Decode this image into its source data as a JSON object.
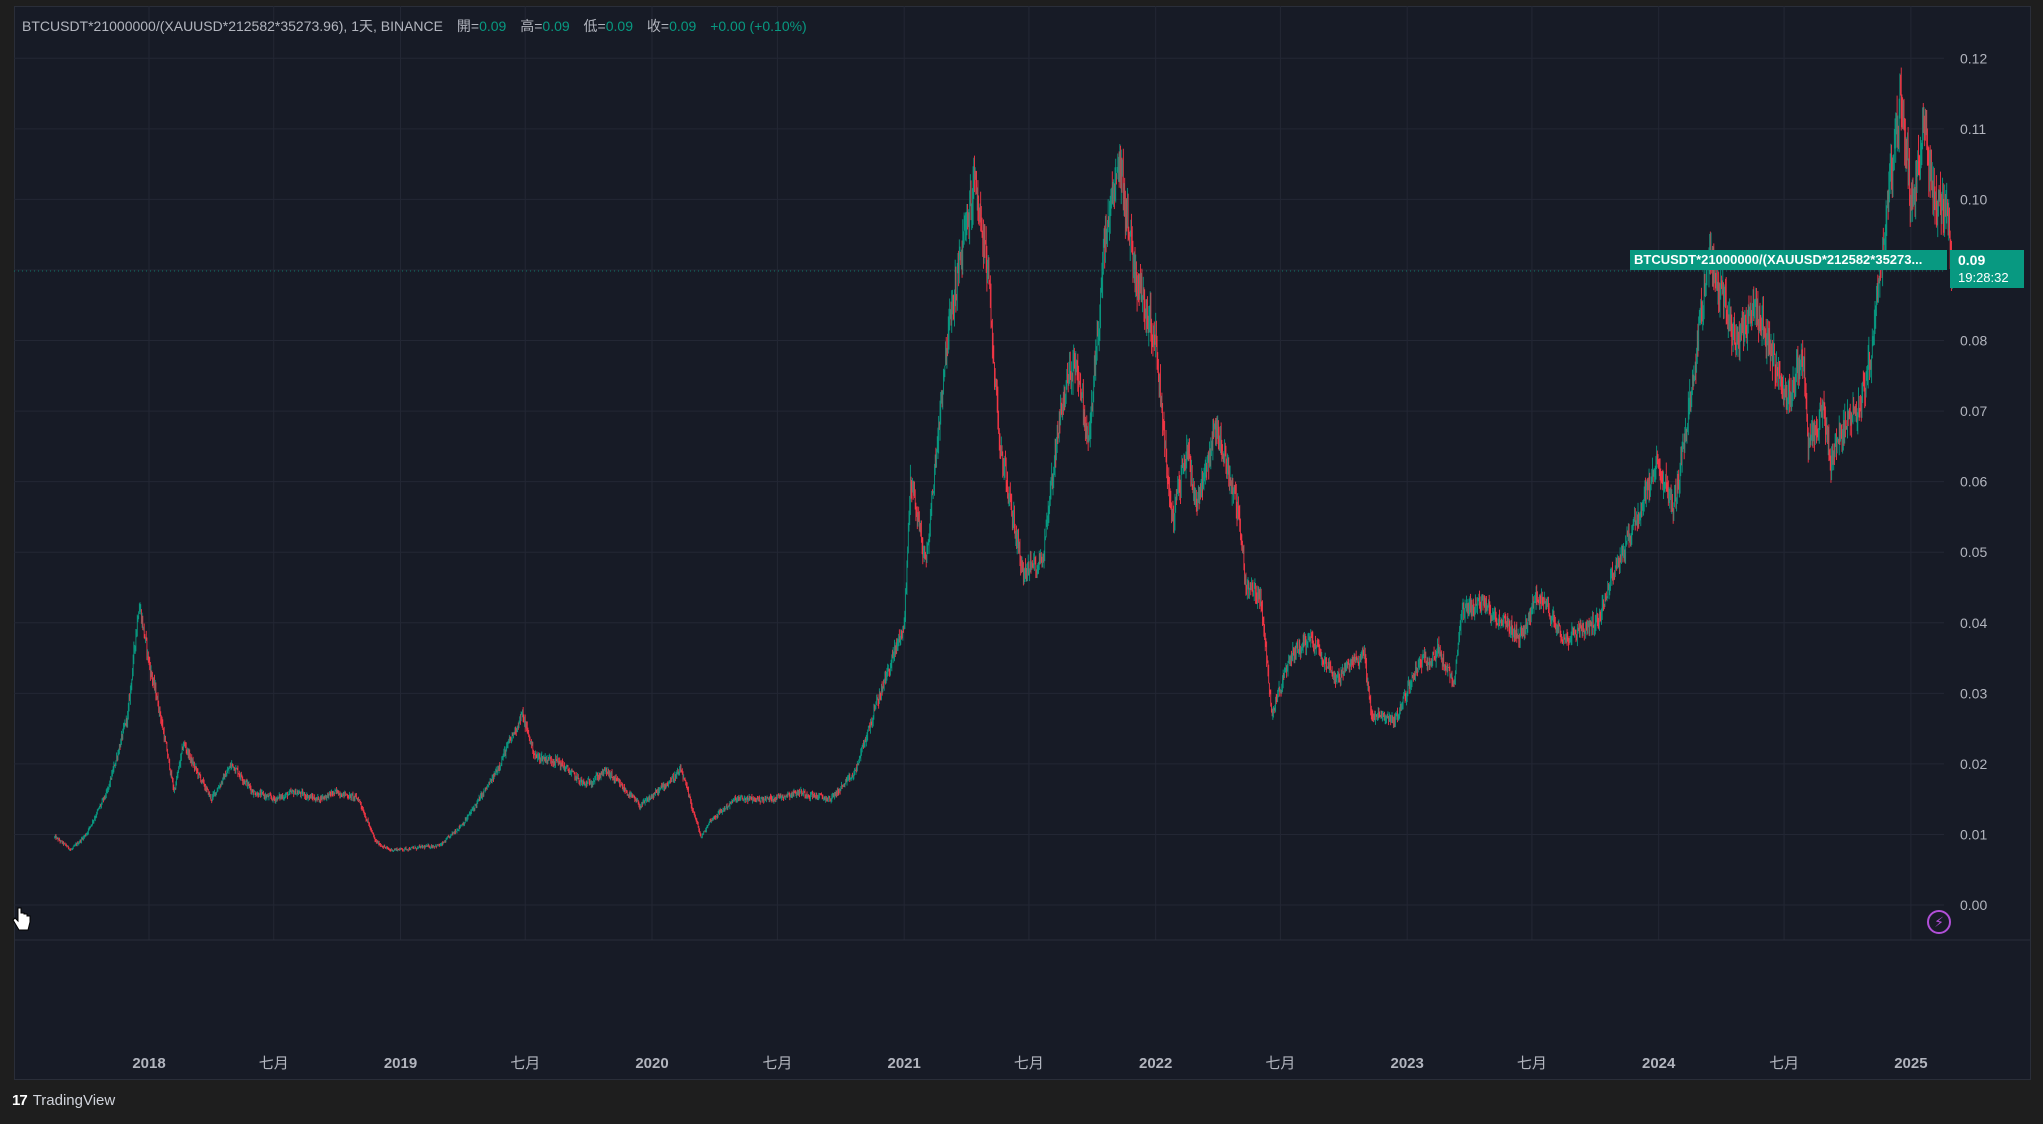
{
  "legend": {
    "symbol": "BTCUSDT*21000000/(XAUUSD*212582*35273.96), 1天, BINANCE",
    "open_label": "開=",
    "open": "0.09",
    "high_label": "高=",
    "high": "0.09",
    "low_label": "低=",
    "low": "0.09",
    "close_label": "收=",
    "close": "0.09",
    "change": "+0.00 (+0.10%)"
  },
  "price_label": "BTCUSDT*21000000/(XAUUSD*212582*35273...",
  "price_tag": {
    "value": "0.09",
    "countdown": "19:28:32"
  },
  "footer": {
    "brand": "TradingView",
    "logo_glyph": "17"
  },
  "colors": {
    "background": "#171b26",
    "grid": "#232734",
    "up": "#089981",
    "down": "#f23645",
    "axis_text": "#b2b5be",
    "accent_purple": "#b14fd8"
  },
  "icons": {
    "cursor": "hand-cursor-icon",
    "lightning": "lightning-icon",
    "logo": "tradingview-logo-icon"
  },
  "chart_data": {
    "type": "candlestick",
    "title": "",
    "xlabel": "",
    "ylabel": "",
    "ylim": [
      0.0,
      0.12
    ],
    "y_ticks": [
      "0.12",
      "0.11",
      "0.10",
      "0.09",
      "0.08",
      "0.07",
      "0.06",
      "0.05",
      "0.04",
      "0.03",
      "0.02",
      "0.01",
      "0.00"
    ],
    "x_ticks": [
      {
        "label": "2018",
        "date": "2018-01-01",
        "bold": true
      },
      {
        "label": "七月",
        "date": "2018-07-01",
        "bold": false
      },
      {
        "label": "2019",
        "date": "2019-01-01",
        "bold": true
      },
      {
        "label": "七月",
        "date": "2019-07-01",
        "bold": false
      },
      {
        "label": "2020",
        "date": "2020-01-01",
        "bold": true
      },
      {
        "label": "七月",
        "date": "2020-07-01",
        "bold": false
      },
      {
        "label": "2021",
        "date": "2021-01-01",
        "bold": true
      },
      {
        "label": "七月",
        "date": "2021-07-01",
        "bold": false
      },
      {
        "label": "2022",
        "date": "2022-01-01",
        "bold": true
      },
      {
        "label": "七月",
        "date": "2022-07-01",
        "bold": false
      },
      {
        "label": "2023",
        "date": "2023-01-01",
        "bold": true
      },
      {
        "label": "七月",
        "date": "2023-07-01",
        "bold": false
      },
      {
        "label": "2024",
        "date": "2024-01-01",
        "bold": true
      },
      {
        "label": "七月",
        "date": "2024-07-01",
        "bold": false
      },
      {
        "label": "2025",
        "date": "2025-01-01",
        "bold": true
      }
    ],
    "grid": true,
    "last_price": 0.09,
    "series": [
      {
        "values": [
          [
            "2017-08-17",
            0.0096
          ],
          [
            "2017-09-10",
            0.0078
          ],
          [
            "2017-10-01",
            0.01
          ],
          [
            "2017-11-01",
            0.016
          ],
          [
            "2017-12-01",
            0.027
          ],
          [
            "2017-12-17",
            0.043
          ],
          [
            "2018-01-01",
            0.034
          ],
          [
            "2018-01-15",
            0.028
          ],
          [
            "2018-02-06",
            0.016
          ],
          [
            "2018-02-20",
            0.023
          ],
          [
            "2018-03-05",
            0.02
          ],
          [
            "2018-04-01",
            0.015
          ],
          [
            "2018-05-01",
            0.02
          ],
          [
            "2018-06-01",
            0.016
          ],
          [
            "2018-07-01",
            0.015
          ],
          [
            "2018-08-01",
            0.016
          ],
          [
            "2018-09-01",
            0.015
          ],
          [
            "2018-10-01",
            0.016
          ],
          [
            "2018-11-01",
            0.015
          ],
          [
            "2018-11-25",
            0.009
          ],
          [
            "2018-12-15",
            0.0078
          ],
          [
            "2019-01-15",
            0.008
          ],
          [
            "2019-03-01",
            0.0085
          ],
          [
            "2019-04-05",
            0.012
          ],
          [
            "2019-05-15",
            0.018
          ],
          [
            "2019-06-26",
            0.027
          ],
          [
            "2019-07-15",
            0.021
          ],
          [
            "2019-08-15",
            0.0205
          ],
          [
            "2019-09-25",
            0.017
          ],
          [
            "2019-10-26",
            0.019
          ],
          [
            "2019-12-15",
            0.014
          ],
          [
            "2020-02-12",
            0.019
          ],
          [
            "2020-03-12",
            0.0095
          ],
          [
            "2020-03-25",
            0.012
          ],
          [
            "2020-05-01",
            0.015
          ],
          [
            "2020-06-15",
            0.015
          ],
          [
            "2020-08-01",
            0.016
          ],
          [
            "2020-09-15",
            0.015
          ],
          [
            "2020-10-20",
            0.0185
          ],
          [
            "2020-11-20",
            0.028
          ],
          [
            "2021-01-01",
            0.04
          ],
          [
            "2021-01-10",
            0.061
          ],
          [
            "2021-02-01",
            0.048
          ],
          [
            "2021-03-01",
            0.078
          ],
          [
            "2021-03-20",
            0.09
          ],
          [
            "2021-04-14",
            0.103
          ],
          [
            "2021-05-01",
            0.09
          ],
          [
            "2021-05-20",
            0.065
          ],
          [
            "2021-06-22",
            0.047
          ],
          [
            "2021-07-20",
            0.049
          ],
          [
            "2021-08-15",
            0.07
          ],
          [
            "2021-09-06",
            0.078
          ],
          [
            "2021-09-25",
            0.065
          ],
          [
            "2021-10-20",
            0.095
          ],
          [
            "2021-11-10",
            0.105
          ],
          [
            "2021-12-01",
            0.09
          ],
          [
            "2022-01-01",
            0.08
          ],
          [
            "2022-01-24",
            0.054
          ],
          [
            "2022-02-15",
            0.065
          ],
          [
            "2022-03-01",
            0.057
          ],
          [
            "2022-03-30",
            0.068
          ],
          [
            "2022-04-30",
            0.056
          ],
          [
            "2022-05-12",
            0.045
          ],
          [
            "2022-06-01",
            0.044
          ],
          [
            "2022-06-18",
            0.0275
          ],
          [
            "2022-07-20",
            0.036
          ],
          [
            "2022-08-15",
            0.038
          ],
          [
            "2022-09-20",
            0.032
          ],
          [
            "2022-10-30",
            0.036
          ],
          [
            "2022-11-09",
            0.027
          ],
          [
            "2022-12-15",
            0.0262
          ],
          [
            "2023-01-15",
            0.034
          ],
          [
            "2023-02-15",
            0.036
          ],
          [
            "2023-03-10",
            0.031
          ],
          [
            "2023-03-20",
            0.041
          ],
          [
            "2023-04-14",
            0.043
          ],
          [
            "2023-06-15",
            0.038
          ],
          [
            "2023-07-10",
            0.044
          ],
          [
            "2023-08-17",
            0.038
          ],
          [
            "2023-10-01",
            0.04
          ],
          [
            "2023-10-30",
            0.048
          ],
          [
            "2023-12-05",
            0.056
          ],
          [
            "2024-01-01",
            0.063
          ],
          [
            "2024-01-23",
            0.056
          ],
          [
            "2024-02-20",
            0.075
          ],
          [
            "2024-03-14",
            0.093
          ],
          [
            "2024-04-20",
            0.08
          ],
          [
            "2024-05-20",
            0.085
          ],
          [
            "2024-06-15",
            0.077
          ],
          [
            "2024-07-05",
            0.072
          ],
          [
            "2024-07-29",
            0.078
          ],
          [
            "2024-08-05",
            0.064
          ],
          [
            "2024-08-25",
            0.07
          ],
          [
            "2024-09-06",
            0.063
          ],
          [
            "2024-09-28",
            0.069
          ],
          [
            "2024-10-15",
            0.07
          ],
          [
            "2024-11-05",
            0.078
          ],
          [
            "2024-11-25",
            0.097
          ],
          [
            "2024-12-17",
            0.114
          ],
          [
            "2025-01-02",
            0.099
          ],
          [
            "2025-01-20",
            0.11
          ],
          [
            "2025-02-05",
            0.1
          ],
          [
            "2025-02-20",
            0.098
          ],
          [
            "2025-03-04",
            0.09
          ]
        ]
      }
    ]
  }
}
